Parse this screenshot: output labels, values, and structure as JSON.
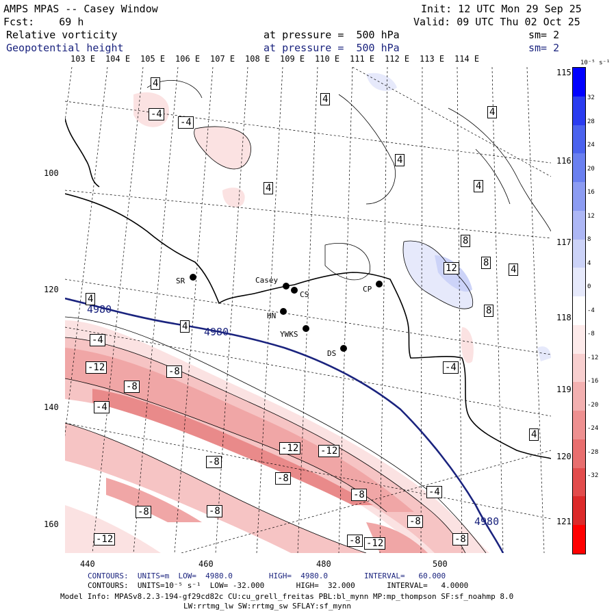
{
  "header": {
    "title": "AMPS MPAS -- Casey Window",
    "fcst": "Fcst:    69 h",
    "init": "Init: 12 UTC Mon 29 Sep 25",
    "valid": "Valid: 09 UTC Thu 02 Oct 25",
    "field1": {
      "name": "Relative vorticity",
      "level": "at pressure =  500 hPa",
      "sm": "sm= 2"
    },
    "field2": {
      "name": "Geopotential height",
      "level": "at pressure =  500 hPa",
      "sm": "sm= 2"
    }
  },
  "lon_labels": [
    "103 E",
    "104 E",
    "105 E",
    "106 E",
    "107 E",
    "108 E",
    "109 E",
    "110 E",
    "111 E",
    "112 E",
    "113 E",
    "114 E"
  ],
  "lat_labels": [
    "115 E",
    "116 E",
    "117 E",
    "118 E",
    "119 E",
    "120 E",
    "121 E"
  ],
  "x_ticks": [
    "440",
    "460",
    "480",
    "500"
  ],
  "y_ticks": [
    "100",
    "120",
    "140",
    "160"
  ],
  "stations": [
    {
      "name": "SR"
    },
    {
      "name": "Casey"
    },
    {
      "name": "CS"
    },
    {
      "name": "CP"
    },
    {
      "name": "HN"
    },
    {
      "name": "YWKS"
    },
    {
      "name": "DS"
    }
  ],
  "height_contour_label": "4980",
  "vort_labels": [
    "4",
    "-4",
    "8",
    "12",
    "-8",
    "-12"
  ],
  "colorbar": {
    "units": "10⁻⁵ s⁻¹",
    "ticks": [
      "32",
      "28",
      "24",
      "20",
      "16",
      "12",
      "8",
      "4",
      "0",
      "-4",
      "-8",
      "-12",
      "-16",
      "-20",
      "-24",
      "-28",
      "-32"
    ],
    "colors": [
      "#0000ff",
      "#2a3cf0",
      "#4b63ee",
      "#6a80f0",
      "#8c9cf2",
      "#adb7f5",
      "#ccd3f8",
      "#e6e9fb",
      "#ffffff",
      "#fdeaea",
      "#f8cfcf",
      "#f3b0b0",
      "#ee9090",
      "#e86e6e",
      "#e24c4c",
      "#dc2a2a",
      "#ff0000"
    ]
  },
  "footer": {
    "line1": "CONTOURS:  UNITS=m  LOW=  4980.0        HIGH=  4980.0        INTERVAL=   60.000",
    "line2": "CONTOURS:  UNITS=10⁻⁵ s⁻¹  LOW= -32.000       HIGH=  32.000       INTERVAL=   4.0000",
    "line3": "Model Info: MPASv8.2.3-194-gf29cd82c CU:cu_grell_freitas PBL:bl_mynn MP:mp_thompson SF:sf_noahmp 8.0",
    "line4": "LW:rrtmg_lw SW:rrtmg_sw SFLAY:sf_mynn"
  },
  "colors": {
    "height_contour": "#1a237e",
    "coast": "#000000"
  }
}
